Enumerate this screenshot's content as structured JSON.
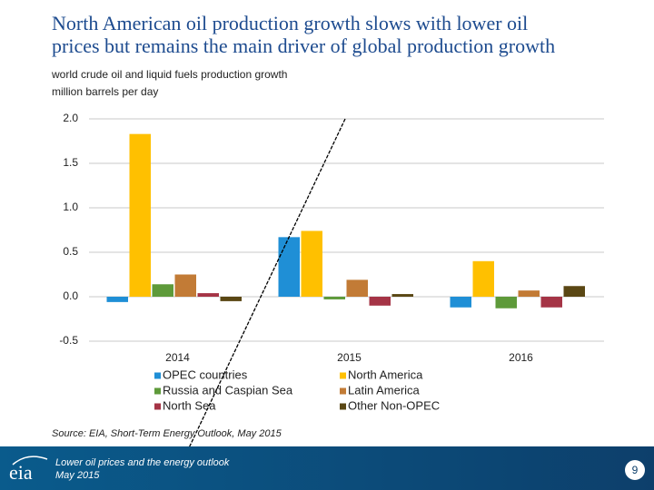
{
  "chart_data": {
    "type": "bar",
    "title": [
      "North American oil production growth slows with lower oil",
      "prices but remains the main driver of global production growth"
    ],
    "subtitle": [
      "world crude oil and liquid fuels production growth",
      "million barrels per day"
    ],
    "categories": [
      "2014",
      "2015",
      "2016"
    ],
    "series": [
      {
        "name": "OPEC countries",
        "color": "#1f8fd6",
        "values": [
          -0.06,
          0.67,
          -0.12
        ]
      },
      {
        "name": "North America",
        "color": "#ffc000",
        "values": [
          1.83,
          0.74,
          0.4
        ]
      },
      {
        "name": "Russia and Caspian Sea",
        "color": "#5e9a3a",
        "values": [
          0.14,
          -0.03,
          -0.13
        ]
      },
      {
        "name": "Latin America",
        "color": "#c27b36",
        "values": [
          0.25,
          0.19,
          0.07
        ]
      },
      {
        "name": "North Sea",
        "color": "#a53446",
        "values": [
          0.04,
          -0.1,
          -0.12
        ]
      },
      {
        "name": "Other Non-OPEC",
        "color": "#5a4714",
        "values": [
          -0.05,
          0.03,
          0.12
        ]
      }
    ],
    "ylim": [
      -0.5,
      2.0
    ],
    "yticks": [
      {
        "value": 2,
        "label": "2.0"
      },
      1.5,
      {
        "value": 1,
        "label": "1.0"
      },
      0.5,
      {
        "value": 0,
        "label": "0.0"
      },
      -0.5
    ],
    "grid": true,
    "source": "Source: EIA, Short-Term Energy Outlook, May 2015"
  },
  "footer": {
    "logo": "eia",
    "title": "Lower oil prices and the energy outlook",
    "date": "May 2015",
    "page": "9"
  }
}
